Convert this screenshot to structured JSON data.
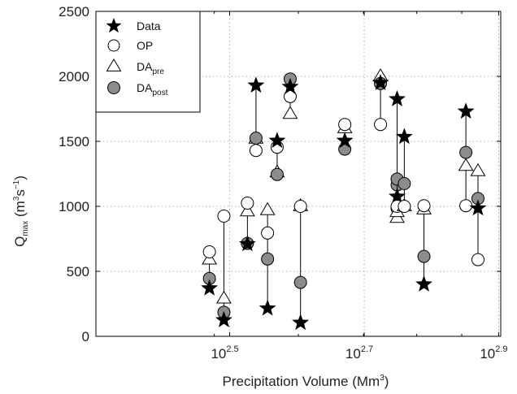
{
  "chart_data": {
    "type": "scatter",
    "xscale": "log",
    "xlim": [
      200,
      800
    ],
    "ylim": [
      0,
      2500
    ],
    "grid": true,
    "legend_position": "top-left",
    "xlabel": "Precipitation Volume (Mm",
    "xlabel_sup": "3",
    "xlabel_end": ")",
    "ylabel": {
      "main": "Q",
      "sub": "max",
      "paren": " (m",
      "sup1": "3",
      "mid": "s",
      "sup2": "−1",
      "end": ")"
    },
    "y_ticks": [
      "0",
      "500",
      "1000",
      "1500",
      "2000",
      "2500"
    ],
    "x_ticks": [
      {
        "value": 316.2,
        "base": "10",
        "exp": "2.5"
      },
      {
        "value": 501.2,
        "base": "10",
        "exp": "2.7"
      },
      {
        "value": 794.3,
        "base": "10",
        "exp": "2.9"
      }
    ],
    "legend": [
      {
        "key": "data",
        "label": "Data",
        "sub": ""
      },
      {
        "key": "op",
        "label": "OP",
        "sub": ""
      },
      {
        "key": "dapre",
        "label": "DA",
        "sub": "pre"
      },
      {
        "key": "dapost",
        "label": "DA",
        "sub": "post"
      }
    ],
    "series_style": {
      "data_color": "#000000",
      "post_fill": "#8c8c8c"
    },
    "events": [
      {
        "x": 295,
        "data": 370,
        "op": 650,
        "dapre": 590,
        "dapost": 445
      },
      {
        "x": 310,
        "data": 125,
        "op": 925,
        "dapre": 290,
        "dapost": 185
      },
      {
        "x": 336,
        "data": 710,
        "op": 1025,
        "dapre": 960,
        "dapost": 715
      },
      {
        "x": 346,
        "data": 1930,
        "op": 1430,
        "dapre": 1520,
        "dapost": 1525
      },
      {
        "x": 360,
        "data": 215,
        "op": 795,
        "dapre": 970,
        "dapost": 595
      },
      {
        "x": 372,
        "data": 1505,
        "op": 1455,
        "dapre": 1260,
        "dapost": 1245
      },
      {
        "x": 389,
        "data": 1920,
        "op": 1845,
        "dapre": 1710,
        "dapost": 1980
      },
      {
        "x": 403,
        "data": 105,
        "op": 1000,
        "dapre": 1000,
        "dapost": 415
      },
      {
        "x": 469,
        "data": 1505,
        "op": 1630,
        "dapre": 1600,
        "dapost": 1440
      },
      {
        "x": 530,
        "data": 1950,
        "op": 1630,
        "dapre": 2000,
        "dapost": 1945
      },
      {
        "x": 561,
        "data": 1075,
        "op": 985,
        "dapre": 910,
        "dapost": 1165
      },
      {
        "x": 561,
        "data": 1825,
        "op": 1000,
        "dapre": 955,
        "dapost": 1210
      },
      {
        "x": 575,
        "data": 1535,
        "op": 1000,
        "dapre": 1000,
        "dapost": 1175
      },
      {
        "x": 615,
        "data": 400,
        "op": 1005,
        "dapre": 975,
        "dapost": 615
      },
      {
        "x": 710,
        "data": 1730,
        "op": 1005,
        "dapre": 1310,
        "dapost": 1415
      },
      {
        "x": 740,
        "data": 985,
        "op": 590,
        "dapre": 1270,
        "dapost": 1060
      }
    ]
  }
}
